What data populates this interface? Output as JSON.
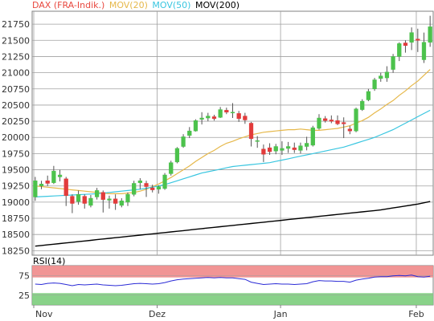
{
  "legend": [
    {
      "label": "DAX (FRA-Indik.)",
      "color": "#e8483f"
    },
    {
      "label": "MOV(20)",
      "color": "#e6b84a"
    },
    {
      "label": "MOV(50)",
      "color": "#39c6e0"
    },
    {
      "label": "MOV(200)",
      "color": "#000000"
    }
  ],
  "rsi_title": "RSI(14)",
  "colors": {
    "up": "#4cc24c",
    "down": "#e23b3b",
    "ma20": "#e6b84a",
    "ma50": "#39c6e0",
    "ma200": "#000000",
    "rsi": "#2b2bd6",
    "overbought_band": "#f08a8a",
    "oversold_band": "#7ccd7c",
    "grid": "#a0a0a0"
  },
  "chart_data": [
    {
      "type": "candlestick",
      "title": "DAX (FRA-Indik.)",
      "ylim": [
        18180,
        21950
      ],
      "y_ticks": [
        18250,
        18500,
        18750,
        19000,
        19250,
        19500,
        19750,
        20000,
        20250,
        20500,
        20750,
        21000,
        21250,
        21500,
        21750
      ],
      "x_ticks": [
        "Nov",
        "Dez",
        "Jan",
        "Feb"
      ],
      "x_tick_index": [
        0,
        20,
        40,
        62
      ],
      "dates": [
        "10-31",
        "11-01",
        "11-04",
        "11-05",
        "11-06",
        "11-07",
        "11-08",
        "11-11",
        "11-12",
        "11-13",
        "11-14",
        "11-15",
        "11-18",
        "11-19",
        "11-20",
        "11-21",
        "11-22",
        "11-25",
        "11-26",
        "11-27",
        "11-28",
        "11-29",
        "12-02",
        "12-03",
        "12-04",
        "12-05",
        "12-06",
        "12-09",
        "12-10",
        "12-11",
        "12-12",
        "12-13",
        "12-16",
        "12-17",
        "12-18",
        "12-19",
        "12-20",
        "12-23",
        "12-27",
        "12-30",
        "01-02",
        "01-03",
        "01-06",
        "01-07",
        "01-08",
        "01-09",
        "01-10",
        "01-13",
        "01-14",
        "01-15",
        "01-16",
        "01-17",
        "01-20",
        "01-21",
        "01-22",
        "01-23",
        "01-24",
        "01-27",
        "01-28",
        "01-29",
        "01-30",
        "01-31",
        "02-03",
        "02-04",
        "02-05"
      ],
      "ohlc": [
        [
          19080,
          19390,
          19020,
          19330
        ],
        [
          19250,
          19330,
          19200,
          19280
        ],
        [
          19330,
          19410,
          19250,
          19290
        ],
        [
          19300,
          19560,
          19280,
          19480
        ],
        [
          19390,
          19500,
          19320,
          19420
        ],
        [
          19360,
          19390,
          18940,
          19100
        ],
        [
          19090,
          19120,
          18830,
          18980
        ],
        [
          19010,
          19180,
          18960,
          19120
        ],
        [
          19090,
          19120,
          18900,
          18980
        ],
        [
          18950,
          19110,
          18920,
          19060
        ],
        [
          19080,
          19220,
          19040,
          19180
        ],
        [
          19150,
          19180,
          18840,
          19040
        ],
        [
          19030,
          19100,
          18900,
          19050
        ],
        [
          19050,
          19120,
          18880,
          18980
        ],
        [
          18950,
          19060,
          18920,
          19020
        ],
        [
          19000,
          19150,
          18940,
          19120
        ],
        [
          19120,
          19330,
          19090,
          19290
        ],
        [
          19300,
          19370,
          19200,
          19330
        ],
        [
          19290,
          19330,
          19080,
          19240
        ],
        [
          19220,
          19270,
          19150,
          19190
        ],
        [
          19200,
          19260,
          19130,
          19240
        ],
        [
          19210,
          19450,
          19190,
          19420
        ],
        [
          19440,
          19640,
          19410,
          19610
        ],
        [
          19620,
          19850,
          19600,
          19830
        ],
        [
          19860,
          20050,
          19840,
          20010
        ],
        [
          20030,
          20160,
          19990,
          20100
        ],
        [
          20100,
          20280,
          20090,
          20260
        ],
        [
          20280,
          20390,
          20200,
          20300
        ],
        [
          20300,
          20380,
          20250,
          20330
        ],
        [
          20320,
          20350,
          20260,
          20290
        ],
        [
          20310,
          20470,
          20300,
          20430
        ],
        [
          20420,
          20460,
          20360,
          20390
        ],
        [
          20390,
          20530,
          20300,
          20390
        ],
        [
          20370,
          20410,
          20240,
          20290
        ],
        [
          20330,
          20380,
          20210,
          20270
        ],
        [
          20220,
          20240,
          19860,
          19980
        ],
        [
          19950,
          20020,
          19840,
          19950
        ],
        [
          19820,
          19890,
          19620,
          19740
        ],
        [
          19840,
          19910,
          19730,
          19780
        ],
        [
          19790,
          19900,
          19740,
          19860
        ],
        [
          19800,
          19940,
          19730,
          19830
        ],
        [
          19830,
          19930,
          19760,
          19860
        ],
        [
          19840,
          19920,
          19760,
          19810
        ],
        [
          19800,
          19920,
          19750,
          19870
        ],
        [
          19860,
          20010,
          19800,
          19910
        ],
        [
          19880,
          20180,
          19860,
          20150
        ],
        [
          20140,
          20360,
          20120,
          20300
        ],
        [
          20290,
          20330,
          20230,
          20260
        ],
        [
          20270,
          20340,
          20220,
          20250
        ],
        [
          20260,
          20340,
          20190,
          20210
        ],
        [
          20230,
          20310,
          19990,
          20210
        ],
        [
          20130,
          20180,
          20050,
          20100
        ],
        [
          20100,
          20460,
          20080,
          20440
        ],
        [
          20430,
          20590,
          20410,
          20560
        ],
        [
          20580,
          20750,
          20560,
          20710
        ],
        [
          20750,
          20920,
          20720,
          20890
        ],
        [
          20910,
          21000,
          20860,
          20950
        ],
        [
          20920,
          21100,
          20860,
          21010
        ],
        [
          21050,
          21290,
          21000,
          21250
        ],
        [
          21250,
          21470,
          21180,
          21450
        ],
        [
          21460,
          21500,
          21310,
          21420
        ],
        [
          21470,
          21700,
          21350,
          21620
        ],
        [
          21520,
          21680,
          21320,
          21500
        ],
        [
          21200,
          21620,
          21150,
          21470
        ],
        [
          21470,
          21880,
          21400,
          21710
        ]
      ],
      "series": [
        {
          "name": "MOV(20)",
          "values": [
            19250,
            19240,
            19230,
            19220,
            19210,
            19200,
            19190,
            19180,
            19170,
            19160,
            19150,
            19140,
            19130,
            19130,
            19130,
            19140,
            19150,
            19170,
            19200,
            19240,
            19280,
            19330,
            19380,
            19440,
            19500,
            19560,
            19630,
            19690,
            19750,
            19800,
            19860,
            19910,
            19940,
            19980,
            20010,
            20040,
            20060,
            20080,
            20090,
            20100,
            20110,
            20120,
            20120,
            20130,
            20120,
            20110,
            20110,
            20120,
            20130,
            20140,
            20160,
            20180,
            20220,
            20260,
            20310,
            20380,
            20440,
            20510,
            20570,
            20650,
            20720,
            20800,
            20870,
            20960,
            21050
          ]
        },
        {
          "name": "MOV(50)",
          "values": [
            19080,
            19085,
            19090,
            19095,
            19100,
            19105,
            19110,
            19115,
            19120,
            19125,
            19130,
            19140,
            19150,
            19160,
            19170,
            19180,
            19190,
            19200,
            19215,
            19230,
            19250,
            19270,
            19300,
            19330,
            19360,
            19390,
            19420,
            19450,
            19470,
            19490,
            19510,
            19530,
            19550,
            19560,
            19570,
            19580,
            19590,
            19600,
            19610,
            19630,
            19650,
            19670,
            19690,
            19710,
            19730,
            19750,
            19770,
            19790,
            19810,
            19830,
            19850,
            19880,
            19910,
            19940,
            19970,
            20000,
            20040,
            20080,
            20120,
            20170,
            20220,
            20270,
            20320,
            20370,
            20420
          ]
        },
        {
          "name": "MOV(200)",
          "values": [
            18320,
            18330,
            18340,
            18350,
            18360,
            18370,
            18380,
            18390,
            18400,
            18410,
            18420,
            18430,
            18440,
            18450,
            18460,
            18470,
            18480,
            18490,
            18500,
            18510,
            18520,
            18530,
            18540,
            18550,
            18560,
            18570,
            18580,
            18590,
            18600,
            18610,
            18620,
            18630,
            18640,
            18650,
            18660,
            18670,
            18680,
            18690,
            18700,
            18710,
            18720,
            18730,
            18740,
            18750,
            18760,
            18770,
            18780,
            18790,
            18800,
            18810,
            18820,
            18830,
            18840,
            18850,
            18860,
            18870,
            18880,
            18895,
            18910,
            18925,
            18940,
            18955,
            18970,
            18990,
            19010
          ]
        }
      ]
    },
    {
      "type": "line",
      "title": "RSI(14)",
      "ylim": [
        0,
        100
      ],
      "y_ticks": [
        25,
        75
      ],
      "bands": [
        {
          "from": 70,
          "to": 100,
          "name": "overbought"
        },
        {
          "from": 0,
          "to": 30,
          "name": "oversold"
        }
      ],
      "series": [
        {
          "name": "RSI(14)",
          "values": [
            53,
            52,
            55,
            56,
            55,
            52,
            49,
            52,
            51,
            52,
            53,
            51,
            50,
            49,
            50,
            52,
            54,
            55,
            54,
            53,
            54,
            57,
            61,
            64,
            66,
            67,
            68,
            69,
            70,
            69,
            70,
            69,
            69,
            67,
            65,
            58,
            55,
            52,
            53,
            54,
            53,
            53,
            52,
            53,
            54,
            59,
            62,
            61,
            61,
            60,
            60,
            58,
            63,
            66,
            68,
            71,
            72,
            72,
            74,
            75,
            74,
            76,
            72,
            71,
            73
          ]
        }
      ]
    }
  ]
}
